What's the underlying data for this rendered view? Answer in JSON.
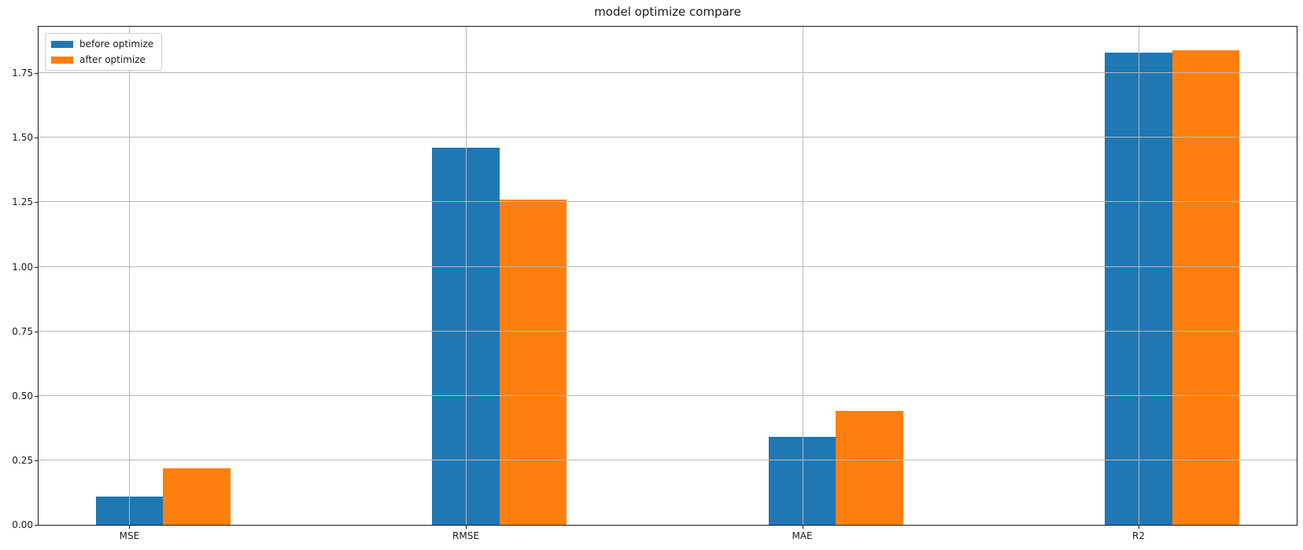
{
  "figure": {
    "background": "#ffffff"
  },
  "chart_data": {
    "type": "bar",
    "title": "model optimize compare",
    "categories": [
      "MSE",
      "RMSE",
      "MAE",
      "R2"
    ],
    "series": [
      {
        "name": "before optimize",
        "color": "#1f77b4",
        "values": [
          0.11,
          1.46,
          0.34,
          1.83
        ]
      },
      {
        "name": "after optimize",
        "color": "#ff7f0e",
        "values": [
          0.22,
          1.26,
          0.44,
          1.84
        ]
      }
    ],
    "xlabel": "",
    "ylabel": "",
    "ylim": [
      0,
      1.93
    ],
    "xlim": [
      -0.27,
      3.47
    ],
    "yticks": [
      0,
      0.25,
      0.5,
      0.75,
      1.0,
      1.25,
      1.5,
      1.75
    ],
    "ytick_labels": [
      "0.00",
      "0.25",
      "0.50",
      "0.75",
      "1.00",
      "1.25",
      "1.50",
      "1.75"
    ],
    "bar_width": 0.2,
    "grid": true,
    "grid_on_top": true,
    "grid_color": "#b8b8b8",
    "axis_color": "#1a1a1a",
    "legend_position": "upper left"
  }
}
